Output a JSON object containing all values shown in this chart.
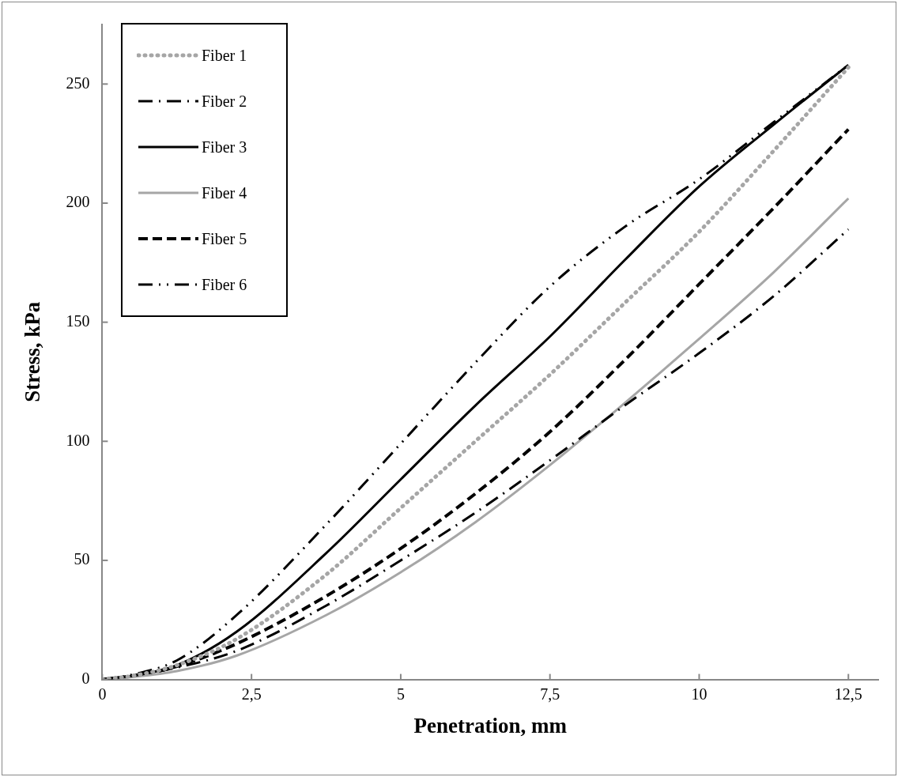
{
  "chart_data": {
    "type": "line",
    "xlabel": "Penetration, mm",
    "ylabel": "Stress, kPa",
    "xlim": [
      0,
      13
    ],
    "xticks": [
      0,
      {
        "value": 2.5,
        "label": "2,5"
      },
      5,
      {
        "value": 7.5,
        "label": "7,5"
      },
      10,
      {
        "value": 12.5,
        "label": "12,5"
      }
    ],
    "ylim": [
      0,
      275
    ],
    "yticks": [
      0,
      50,
      100,
      150,
      200,
      250
    ],
    "grid": false,
    "legend": "top left",
    "marker": "none",
    "x": [
      0,
      0.5,
      1.25,
      2.25,
      3.75,
      5,
      6.25,
      7.5,
      8.75,
      10,
      11.25,
      12.5
    ],
    "series": [
      {
        "name": "Fiber 1",
        "color": "#a6a6a6",
        "line_style": "dotted",
        "values": [
          0,
          1.5,
          6,
          17,
          44,
          72,
          100,
          128,
          158,
          188,
          222,
          257
        ]
      },
      {
        "name": "Fiber 2",
        "color": "#000000",
        "line_style": "dashdot",
        "values": [
          0,
          1.5,
          5,
          12,
          31,
          50,
          70,
          92,
          115,
          137,
          161,
          189
        ]
      },
      {
        "name": "Fiber 3",
        "color": "#000000",
        "line_style": "solid",
        "values": [
          0,
          1.5,
          6,
          20,
          53,
          84,
          115,
          144,
          176,
          207,
          233,
          258
        ]
      },
      {
        "name": "Fiber 4",
        "color": "#a6a6a6",
        "line_style": "solid",
        "values": [
          0,
          1,
          3.5,
          10,
          27,
          45,
          66,
          90,
          116,
          143,
          171,
          202
        ]
      },
      {
        "name": "Fiber 5",
        "color": "#000000",
        "line_style": "dashed",
        "values": [
          0,
          1.5,
          5.5,
          15,
          35,
          55,
          78,
          104,
          134,
          166,
          198,
          231
        ]
      },
      {
        "name": "Fiber 6",
        "color": "#000000",
        "line_style": "dashdotdot",
        "values": [
          0,
          2,
          8,
          27,
          65,
          99,
          133,
          165,
          190,
          210,
          234,
          258
        ]
      }
    ]
  }
}
